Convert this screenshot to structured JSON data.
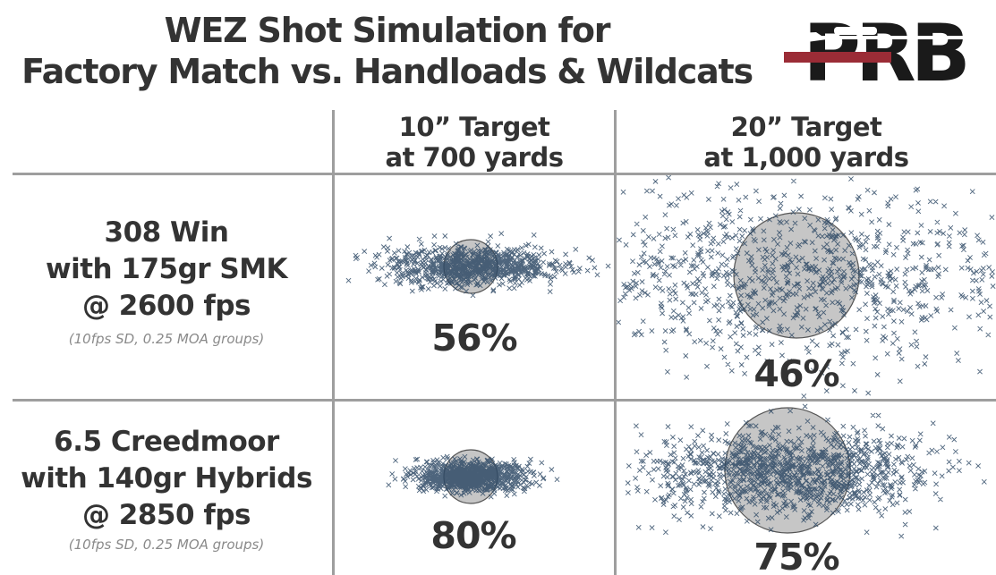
{
  "title": {
    "line1": "WEZ Shot Simulation for",
    "line2": "Factory Match vs. Handloads & Wildcats"
  },
  "logo": {
    "text": "PRB",
    "icon": "rifle-icon"
  },
  "columns": [
    {
      "line1": "10” Target",
      "line2": "at 700 yards"
    },
    {
      "line1": "20” Target",
      "line2": "at 1,000 yards"
    }
  ],
  "rows": [
    {
      "line1": "308 Win",
      "line2": "with 175gr SMK",
      "line3": "@ 2600 fps",
      "subtitle": "(10fps SD, 0.25 MOA groups)",
      "results": [
        {
          "hit_pct": "56%"
        },
        {
          "hit_pct": "46%"
        }
      ]
    },
    {
      "line1": "6.5 Creedmoor",
      "line2": "with 140gr Hybrids",
      "line3": "@ 2850 fps",
      "subtitle": "(10fps SD, 0.25 MOA groups)",
      "results": [
        {
          "hit_pct": "80%"
        },
        {
          "hit_pct": "75%"
        }
      ]
    }
  ],
  "colors": {
    "marker": "#2f4a66",
    "target_fill": "#c6c6c6",
    "target_stroke": "#555555",
    "grid": "#9e9e9e",
    "logo_dark": "#1a1a1a",
    "logo_red": "#9b2c36"
  }
}
